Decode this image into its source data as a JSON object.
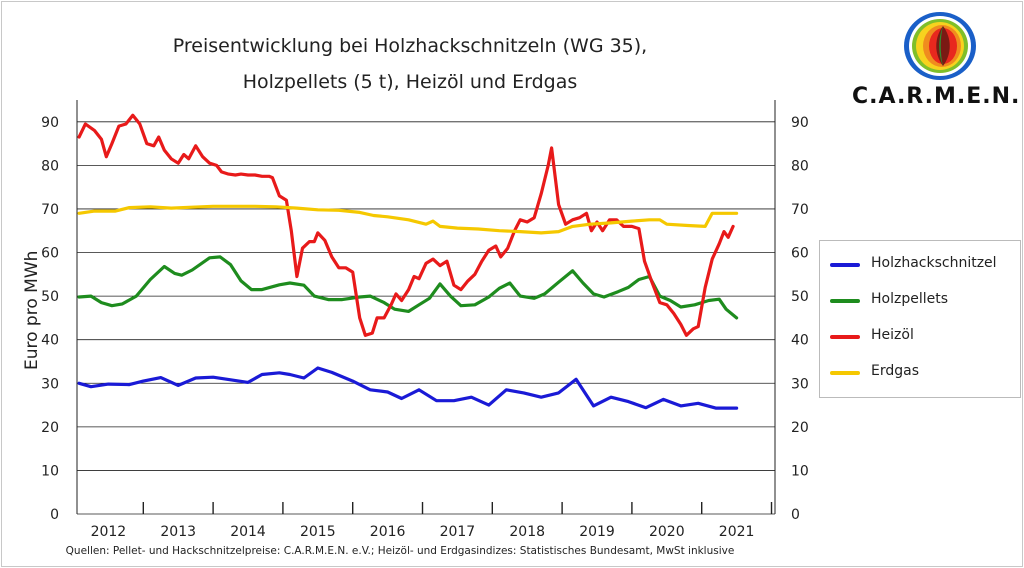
{
  "title_lines": [
    "Preisentwicklung bei Holzhackschnitzeln  (WG 35),",
    "Holzpellets  (5 t), Heizöl und Erdgas"
  ],
  "logo_text": "C.A.R.M.E.N.",
  "source_text": "Quellen: Pellet- und Hackschnitzelpreise: C.A.R.M.E.N. e.V.; Heizöl- und Erdgasindizes: Statistisches Bundesamt, MwSt inklusive",
  "colors": {
    "holzhackschnitzel": "#1a1ad6",
    "holzpellets": "#1e8c1e",
    "heizoel": "#e81a1a",
    "erdgas": "#f5c800"
  },
  "chart_data": {
    "type": "line",
    "title": "Preisentwicklung bei Holzhackschnitzeln  (WG 35), Holzpellets  (5 t), Heizöl und Erdgas",
    "ylabel": "Euro pro MWh",
    "xlabel": "",
    "ylim": [
      0,
      95
    ],
    "xlim": [
      2011.55,
      2021.55
    ],
    "y_ticks": [
      0,
      10,
      20,
      30,
      40,
      50,
      60,
      70,
      80,
      90
    ],
    "x_ticks": [
      "2012",
      "2013",
      "2014",
      "2015",
      "2016",
      "2017",
      "2018",
      "2019",
      "2020",
      "2021"
    ],
    "grid": true,
    "legend_position": "right",
    "series": [
      {
        "name": "Holzhackschnitzel",
        "color": "#1a1ad6",
        "points": [
          [
            2011.58,
            30.0
          ],
          [
            2011.75,
            29.2
          ],
          [
            2012.0,
            29.8
          ],
          [
            2012.3,
            29.7
          ],
          [
            2012.5,
            30.5
          ],
          [
            2012.75,
            31.3
          ],
          [
            2013.0,
            29.5
          ],
          [
            2013.25,
            31.2
          ],
          [
            2013.5,
            31.4
          ],
          [
            2013.75,
            30.8
          ],
          [
            2014.0,
            30.2
          ],
          [
            2014.2,
            32.0
          ],
          [
            2014.45,
            32.4
          ],
          [
            2014.6,
            32.0
          ],
          [
            2014.8,
            31.2
          ],
          [
            2015.0,
            33.5
          ],
          [
            2015.2,
            32.5
          ],
          [
            2015.5,
            30.5
          ],
          [
            2015.75,
            28.5
          ],
          [
            2016.0,
            28.0
          ],
          [
            2016.2,
            26.5
          ],
          [
            2016.45,
            28.5
          ],
          [
            2016.7,
            26.0
          ],
          [
            2016.95,
            26.0
          ],
          [
            2017.2,
            26.8
          ],
          [
            2017.45,
            25.0
          ],
          [
            2017.7,
            28.5
          ],
          [
            2017.95,
            27.8
          ],
          [
            2018.2,
            26.8
          ],
          [
            2018.45,
            27.8
          ],
          [
            2018.7,
            30.9
          ],
          [
            2018.95,
            24.8
          ],
          [
            2019.2,
            26.8
          ],
          [
            2019.45,
            25.8
          ],
          [
            2019.7,
            24.4
          ],
          [
            2019.95,
            26.3
          ],
          [
            2020.2,
            24.8
          ],
          [
            2020.45,
            25.4
          ],
          [
            2020.7,
            24.3
          ],
          [
            2021.0,
            24.3
          ]
        ]
      },
      {
        "name": "Holzpellets",
        "color": "#1e8c1e",
        "points": [
          [
            2011.58,
            49.8
          ],
          [
            2011.75,
            50.0
          ],
          [
            2011.9,
            48.5
          ],
          [
            2012.05,
            47.8
          ],
          [
            2012.2,
            48.2
          ],
          [
            2012.4,
            50.0
          ],
          [
            2012.6,
            53.8
          ],
          [
            2012.8,
            56.8
          ],
          [
            2012.95,
            55.2
          ],
          [
            2013.05,
            54.8
          ],
          [
            2013.2,
            56.0
          ],
          [
            2013.45,
            58.8
          ],
          [
            2013.6,
            59.0
          ],
          [
            2013.75,
            57.2
          ],
          [
            2013.9,
            53.5
          ],
          [
            2014.05,
            51.5
          ],
          [
            2014.2,
            51.5
          ],
          [
            2014.45,
            52.6
          ],
          [
            2014.6,
            53.0
          ],
          [
            2014.8,
            52.5
          ],
          [
            2014.95,
            50.0
          ],
          [
            2015.15,
            49.2
          ],
          [
            2015.35,
            49.2
          ],
          [
            2015.6,
            49.8
          ],
          [
            2015.75,
            50.0
          ],
          [
            2015.95,
            48.5
          ],
          [
            2016.1,
            47.0
          ],
          [
            2016.3,
            46.5
          ],
          [
            2016.45,
            48.0
          ],
          [
            2016.6,
            49.5
          ],
          [
            2016.75,
            52.8
          ],
          [
            2016.9,
            50.0
          ],
          [
            2017.05,
            47.8
          ],
          [
            2017.25,
            48.0
          ],
          [
            2017.45,
            49.8
          ],
          [
            2017.6,
            51.8
          ],
          [
            2017.75,
            53.0
          ],
          [
            2017.9,
            50.0
          ],
          [
            2018.1,
            49.5
          ],
          [
            2018.25,
            50.5
          ],
          [
            2018.45,
            53.2
          ],
          [
            2018.65,
            55.8
          ],
          [
            2018.8,
            53.0
          ],
          [
            2018.95,
            50.5
          ],
          [
            2019.1,
            49.8
          ],
          [
            2019.3,
            51.0
          ],
          [
            2019.45,
            52.0
          ],
          [
            2019.6,
            53.8
          ],
          [
            2019.75,
            54.5
          ],
          [
            2019.9,
            50.0
          ],
          [
            2020.05,
            49.0
          ],
          [
            2020.2,
            47.5
          ],
          [
            2020.4,
            48.0
          ],
          [
            2020.6,
            49.0
          ],
          [
            2020.75,
            49.3
          ],
          [
            2020.85,
            47.0
          ],
          [
            2021.0,
            45.0
          ]
        ]
      },
      {
        "name": "Heizöl",
        "color": "#e81a1a",
        "points": [
          [
            2011.58,
            86.5
          ],
          [
            2011.67,
            89.5
          ],
          [
            2011.8,
            88.0
          ],
          [
            2011.9,
            86.0
          ],
          [
            2011.97,
            82.0
          ],
          [
            2012.05,
            85.0
          ],
          [
            2012.15,
            89.0
          ],
          [
            2012.25,
            89.5
          ],
          [
            2012.35,
            91.5
          ],
          [
            2012.45,
            89.5
          ],
          [
            2012.55,
            85.0
          ],
          [
            2012.65,
            84.5
          ],
          [
            2012.72,
            86.5
          ],
          [
            2012.8,
            83.5
          ],
          [
            2012.9,
            81.5
          ],
          [
            2013.0,
            80.5
          ],
          [
            2013.08,
            82.5
          ],
          [
            2013.15,
            81.5
          ],
          [
            2013.25,
            84.5
          ],
          [
            2013.35,
            82.0
          ],
          [
            2013.45,
            80.5
          ],
          [
            2013.55,
            80.0
          ],
          [
            2013.62,
            78.5
          ],
          [
            2013.72,
            78.0
          ],
          [
            2013.82,
            77.8
          ],
          [
            2013.9,
            78.0
          ],
          [
            2014.0,
            77.8
          ],
          [
            2014.1,
            77.8
          ],
          [
            2014.2,
            77.5
          ],
          [
            2014.3,
            77.5
          ],
          [
            2014.35,
            77.2
          ],
          [
            2014.45,
            73.0
          ],
          [
            2014.55,
            72.0
          ],
          [
            2014.62,
            65.0
          ],
          [
            2014.7,
            54.5
          ],
          [
            2014.78,
            61.0
          ],
          [
            2014.88,
            62.5
          ],
          [
            2014.95,
            62.5
          ],
          [
            2015.0,
            64.5
          ],
          [
            2015.1,
            62.8
          ],
          [
            2015.2,
            59.0
          ],
          [
            2015.3,
            56.5
          ],
          [
            2015.4,
            56.5
          ],
          [
            2015.5,
            55.5
          ],
          [
            2015.6,
            45.0
          ],
          [
            2015.68,
            41.0
          ],
          [
            2015.78,
            41.5
          ],
          [
            2015.85,
            45.0
          ],
          [
            2015.95,
            45.0
          ],
          [
            2016.05,
            48.0
          ],
          [
            2016.12,
            50.5
          ],
          [
            2016.2,
            49.0
          ],
          [
            2016.3,
            51.5
          ],
          [
            2016.38,
            54.5
          ],
          [
            2016.45,
            54.0
          ],
          [
            2016.55,
            57.5
          ],
          [
            2016.65,
            58.5
          ],
          [
            2016.75,
            57.0
          ],
          [
            2016.85,
            58.0
          ],
          [
            2016.95,
            52.5
          ],
          [
            2017.05,
            51.5
          ],
          [
            2017.15,
            53.5
          ],
          [
            2017.25,
            55.0
          ],
          [
            2017.35,
            58.0
          ],
          [
            2017.45,
            60.5
          ],
          [
            2017.55,
            61.5
          ],
          [
            2017.62,
            59.0
          ],
          [
            2017.72,
            61.0
          ],
          [
            2017.82,
            65.0
          ],
          [
            2017.9,
            67.5
          ],
          [
            2018.0,
            67.0
          ],
          [
            2018.1,
            68.0
          ],
          [
            2018.2,
            73.5
          ],
          [
            2018.3,
            80.0
          ],
          [
            2018.35,
            84.0
          ],
          [
            2018.45,
            71.0
          ],
          [
            2018.55,
            66.5
          ],
          [
            2018.65,
            67.5
          ],
          [
            2018.75,
            68.0
          ],
          [
            2018.85,
            69.0
          ],
          [
            2018.92,
            65.0
          ],
          [
            2019.0,
            67.0
          ],
          [
            2019.08,
            65.0
          ],
          [
            2019.18,
            67.5
          ],
          [
            2019.28,
            67.5
          ],
          [
            2019.38,
            66.0
          ],
          [
            2019.5,
            66.0
          ],
          [
            2019.6,
            65.5
          ],
          [
            2019.68,
            58.0
          ],
          [
            2019.78,
            53.5
          ],
          [
            2019.9,
            48.5
          ],
          [
            2020.0,
            48.0
          ],
          [
            2020.1,
            46.0
          ],
          [
            2020.2,
            43.5
          ],
          [
            2020.28,
            41.0
          ],
          [
            2020.38,
            42.5
          ],
          [
            2020.45,
            43.0
          ],
          [
            2020.55,
            52.0
          ],
          [
            2020.65,
            58.5
          ],
          [
            2020.75,
            62.0
          ],
          [
            2020.82,
            64.8
          ],
          [
            2020.88,
            63.5
          ],
          [
            2020.95,
            66.0
          ]
        ]
      },
      {
        "name": "Erdgas",
        "color": "#f5c800",
        "points": [
          [
            2011.58,
            69.0
          ],
          [
            2011.8,
            69.5
          ],
          [
            2012.1,
            69.5
          ],
          [
            2012.3,
            70.3
          ],
          [
            2012.6,
            70.5
          ],
          [
            2012.9,
            70.2
          ],
          [
            2013.2,
            70.4
          ],
          [
            2013.5,
            70.6
          ],
          [
            2013.8,
            70.6
          ],
          [
            2014.1,
            70.6
          ],
          [
            2014.4,
            70.5
          ],
          [
            2014.7,
            70.2
          ],
          [
            2015.0,
            69.8
          ],
          [
            2015.3,
            69.7
          ],
          [
            2015.6,
            69.2
          ],
          [
            2015.8,
            68.5
          ],
          [
            2016.0,
            68.2
          ],
          [
            2016.3,
            67.5
          ],
          [
            2016.55,
            66.5
          ],
          [
            2016.65,
            67.2
          ],
          [
            2016.75,
            66.0
          ],
          [
            2017.0,
            65.6
          ],
          [
            2017.3,
            65.4
          ],
          [
            2017.6,
            65.0
          ],
          [
            2017.9,
            64.8
          ],
          [
            2018.2,
            64.5
          ],
          [
            2018.45,
            64.8
          ],
          [
            2018.65,
            66.0
          ],
          [
            2018.9,
            66.5
          ],
          [
            2019.2,
            66.8
          ],
          [
            2019.5,
            67.2
          ],
          [
            2019.75,
            67.5
          ],
          [
            2019.9,
            67.5
          ],
          [
            2020.0,
            66.5
          ],
          [
            2020.3,
            66.2
          ],
          [
            2020.55,
            66.0
          ],
          [
            2020.65,
            69.0
          ],
          [
            2020.85,
            69.0
          ],
          [
            2021.0,
            69.0
          ]
        ]
      }
    ]
  }
}
